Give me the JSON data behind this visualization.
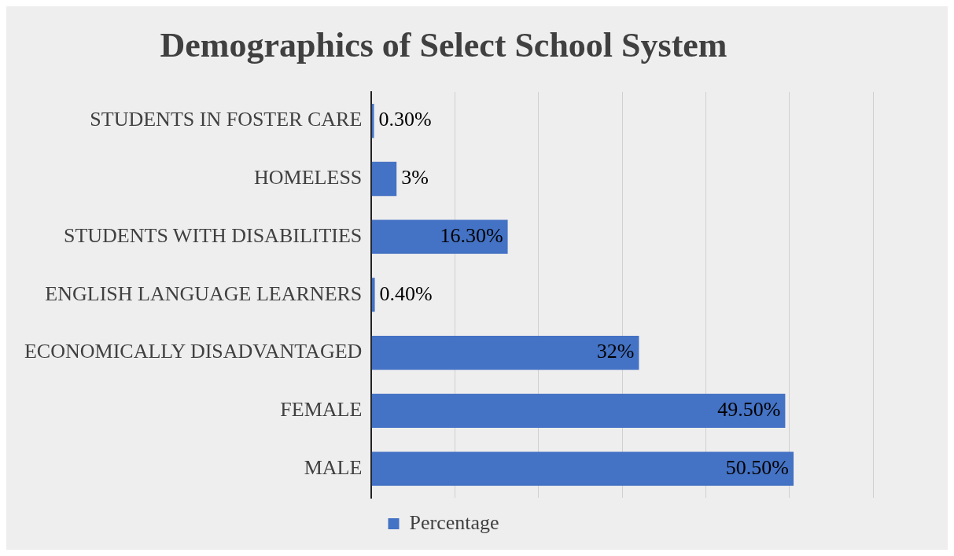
{
  "chart_data": {
    "type": "bar",
    "orientation": "horizontal",
    "title": "Demographics of Select School System",
    "categories": [
      "STUDENTS IN FOSTER CARE",
      "HOMELESS",
      "STUDENTS WITH DISABILITIES",
      "ENGLISH LANGUAGE LEARNERS",
      "ECONOMICALLY DISADVANTAGED",
      "FEMALE",
      "MALE"
    ],
    "series": [
      {
        "name": "Percentage",
        "color": "#4472c4",
        "values": [
          0.3,
          3,
          16.3,
          0.4,
          32,
          49.5,
          50.5
        ],
        "value_labels": [
          "0.30%",
          "3%",
          "16.30%",
          "0.40%",
          "32%",
          "49.50%",
          "50.50%"
        ]
      }
    ],
    "xlim": [
      0,
      60
    ],
    "xticks": [
      {
        "value": 0,
        "label": null
      },
      {
        "value": 10,
        "label": null
      },
      {
        "value": 20,
        "label": null
      },
      {
        "value": 30,
        "label": null
      },
      {
        "value": 40,
        "label": null
      },
      {
        "value": 50,
        "label": null
      },
      {
        "value": 60,
        "label": null
      }
    ],
    "tick_labels": "y",
    "grid": "x",
    "legend": "bottom"
  }
}
